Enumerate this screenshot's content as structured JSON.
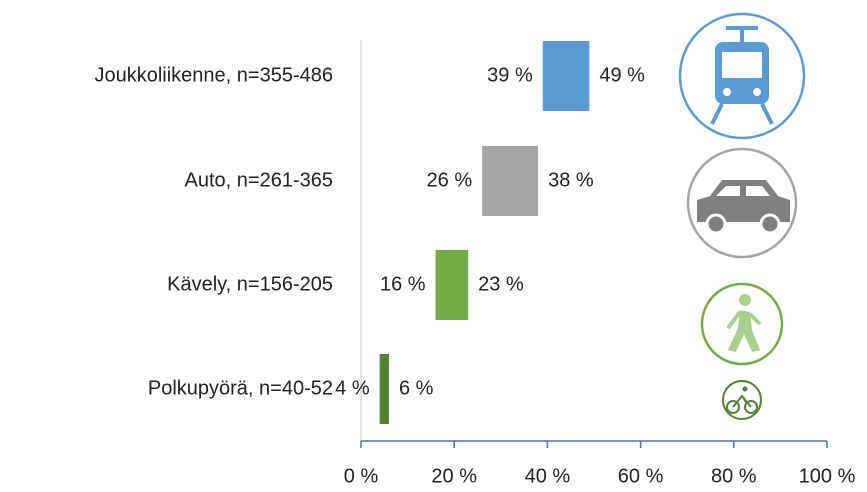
{
  "chart_data": {
    "type": "bar",
    "categories": [
      "Joukkoliikenne, n=355-486",
      "Auto, n=261-365",
      "Kävely, n=156-205",
      "Polkupyörä, n=40-52"
    ],
    "low": [
      39,
      26,
      16,
      4
    ],
    "high": [
      49,
      38,
      23,
      6
    ],
    "low_labels": [
      "39 %",
      "26 %",
      "16 %",
      "4 %"
    ],
    "high_labels": [
      "49 %",
      "38 %",
      "23 %",
      "6 %"
    ],
    "colors": [
      "#5b9bd5",
      "#a5a5a5",
      "#70ad47",
      "#548235"
    ],
    "xlim": [
      0,
      100
    ],
    "xticks": [
      {
        "value": 0,
        "label": "0 %"
      },
      {
        "value": 20,
        "label": "20 %"
      },
      {
        "value": 40,
        "label": "40 %"
      },
      {
        "value": 60,
        "label": "60 %"
      },
      {
        "value": 80,
        "label": "80 %"
      },
      {
        "value": 100,
        "label": "100 %"
      }
    ]
  }
}
